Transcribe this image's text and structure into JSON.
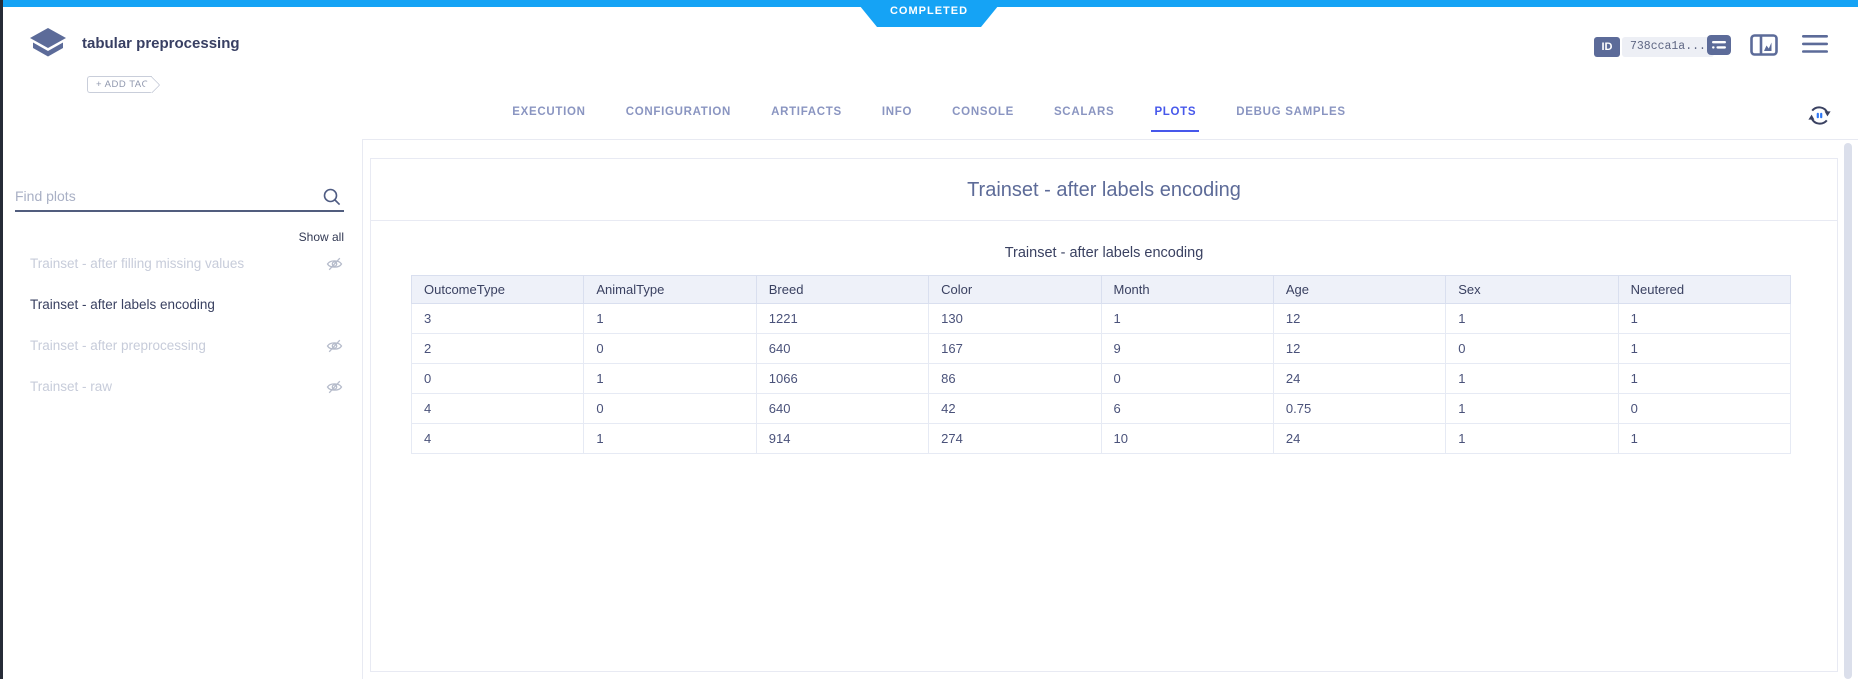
{
  "status_ribbon": {
    "label": "COMPLETED"
  },
  "header": {
    "title": "tabular preprocessing",
    "add_tag_label": "+ ADD TAG",
    "id_badge_label": "ID",
    "id_value": "738cca1a...",
    "icons": [
      "comment-icon",
      "split-panel-chart-icon",
      "menu-icon"
    ]
  },
  "tabs": [
    {
      "label": "EXECUTION",
      "active": false
    },
    {
      "label": "CONFIGURATION",
      "active": false
    },
    {
      "label": "ARTIFACTS",
      "active": false
    },
    {
      "label": "INFO",
      "active": false
    },
    {
      "label": "CONSOLE",
      "active": false
    },
    {
      "label": "SCALARS",
      "active": false
    },
    {
      "label": "PLOTS",
      "active": true
    },
    {
      "label": "DEBUG SAMPLES",
      "active": false
    }
  ],
  "sidebar": {
    "search_placeholder": "Find plots",
    "show_all_label": "Show all",
    "items": [
      {
        "label": "Trainset - after filling missing values",
        "active": false,
        "hidden": true
      },
      {
        "label": "Trainset - after labels encoding",
        "active": true,
        "hidden": false
      },
      {
        "label": "Trainset - after preprocessing",
        "active": false,
        "hidden": true
      },
      {
        "label": "Trainset - raw",
        "active": false,
        "hidden": true
      }
    ]
  },
  "plot": {
    "panel_title": "Trainset - after labels encoding"
  },
  "chart_data": {
    "type": "table",
    "title": "Trainset - after labels encoding",
    "columns": [
      "OutcomeType",
      "AnimalType",
      "Breed",
      "Color",
      "Month",
      "Age",
      "Sex",
      "Neutered"
    ],
    "rows": [
      [
        "3",
        "1",
        "1221",
        "130",
        "1",
        "12",
        "1",
        "1"
      ],
      [
        "2",
        "0",
        "640",
        "167",
        "9",
        "12",
        "0",
        "1"
      ],
      [
        "0",
        "1",
        "1066",
        "86",
        "0",
        "24",
        "1",
        "1"
      ],
      [
        "4",
        "0",
        "640",
        "42",
        "6",
        "0.75",
        "1",
        "0"
      ],
      [
        "4",
        "1",
        "914",
        "274",
        "10",
        "24",
        "1",
        "1"
      ]
    ]
  },
  "colors": {
    "status_completed": "#15a3f5",
    "active_tab": "#4758eb",
    "slate_icon": "#5c6b99",
    "table_header_bg": "#eef1f9"
  }
}
